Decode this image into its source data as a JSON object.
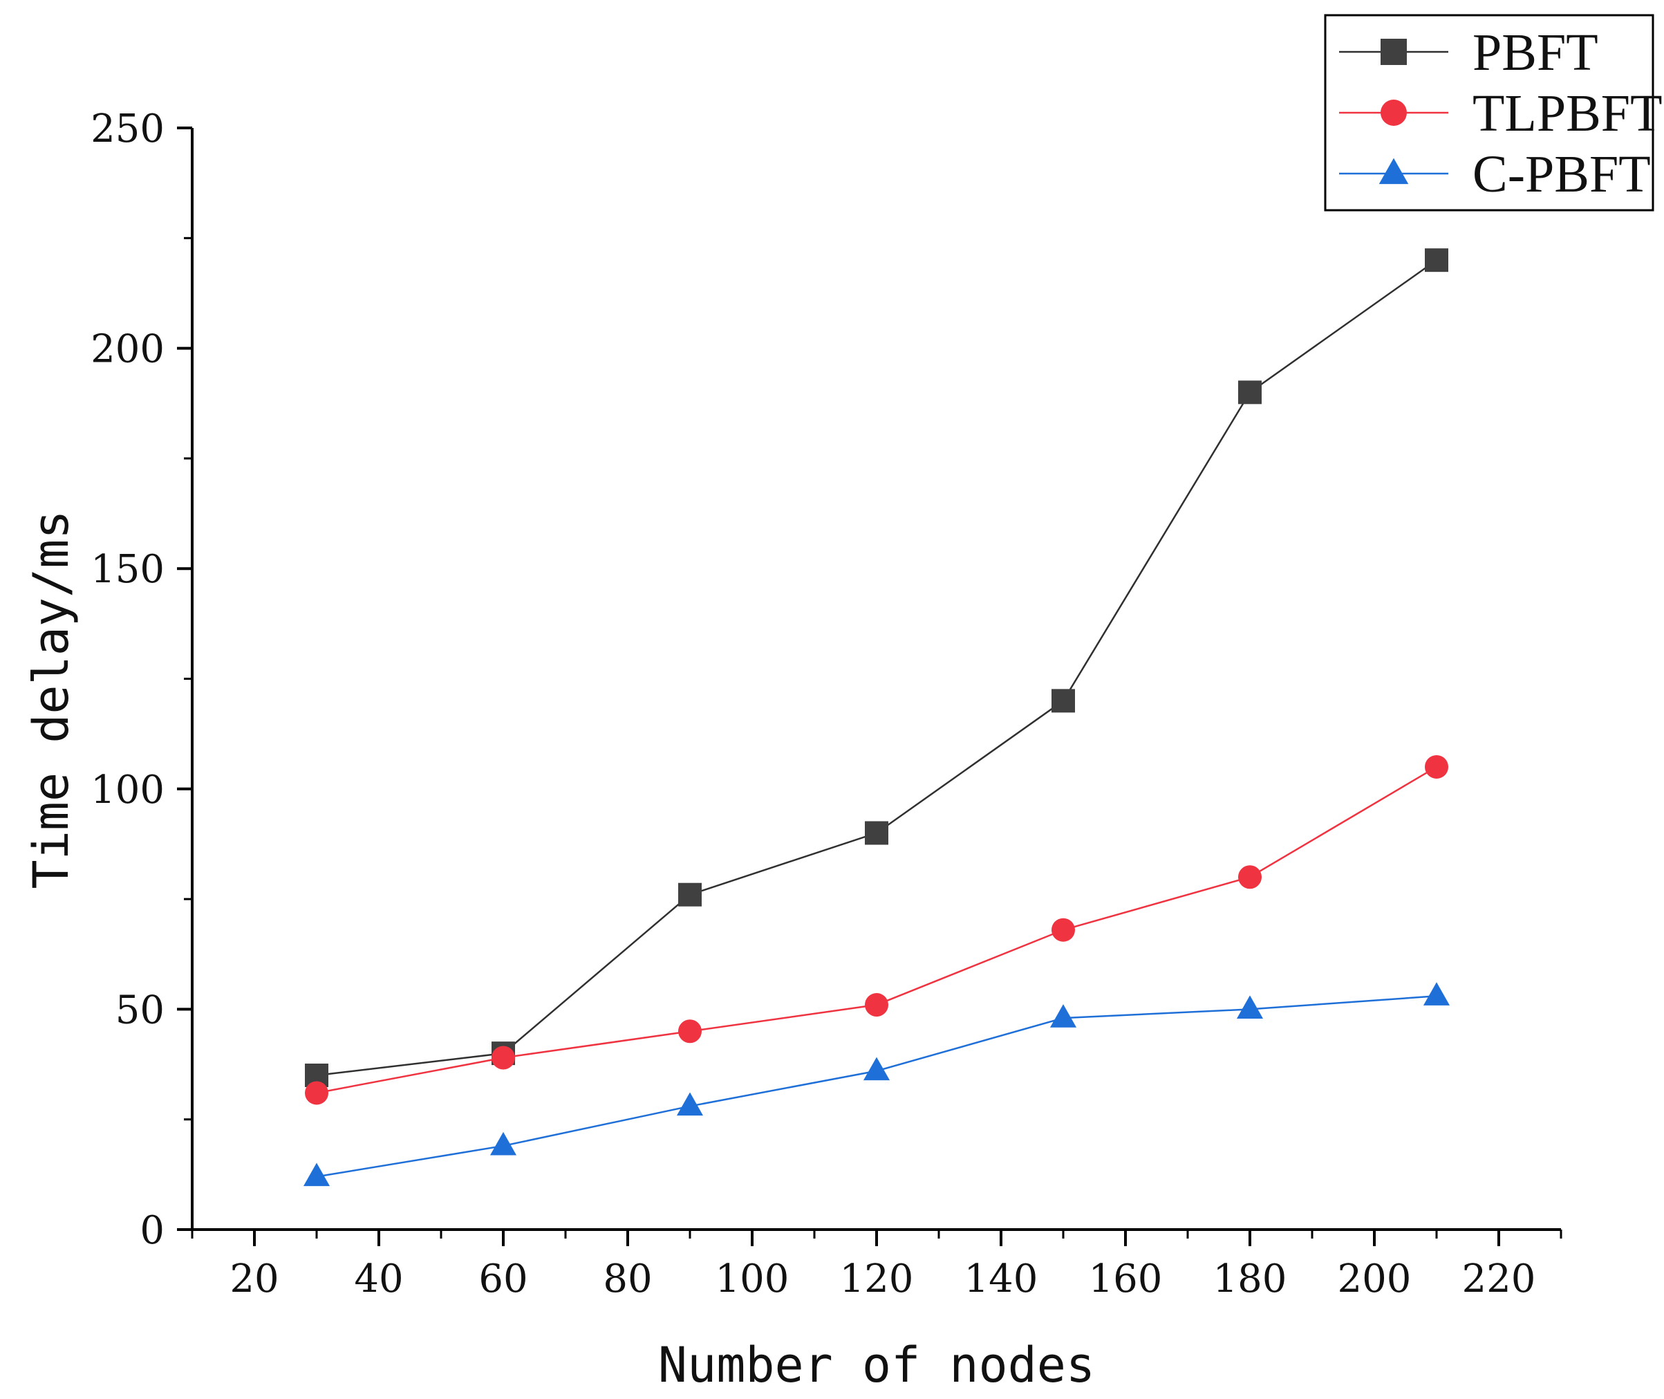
{
  "chart_data": {
    "type": "line",
    "title": "",
    "xlabel": "Number of nodes",
    "ylabel": "Time delay/ms",
    "xlim": [
      10,
      230
    ],
    "ylim": [
      0,
      250
    ],
    "x_ticks": [
      20,
      40,
      60,
      80,
      100,
      120,
      140,
      160,
      180,
      200,
      220
    ],
    "y_ticks": [
      0,
      50,
      100,
      150,
      200,
      250
    ],
    "x": [
      30,
      60,
      90,
      120,
      150,
      180,
      210
    ],
    "legend_position": "top-right",
    "grid": false,
    "series": [
      {
        "name": "PBFT",
        "marker": "square",
        "color": "#404040",
        "line_color": "#303030",
        "values": [
          35,
          40,
          76,
          90,
          120,
          190,
          220
        ]
      },
      {
        "name": "TLPBFT",
        "marker": "circle",
        "color": "#ef3340",
        "line_color": "#ef3340",
        "values": [
          31,
          39,
          45,
          51,
          68,
          80,
          105
        ]
      },
      {
        "name": "C-PBFT",
        "marker": "triangle",
        "color": "#1f6fd8",
        "line_color": "#1f6fd8",
        "values": [
          12,
          19,
          28,
          36,
          48,
          50,
          53
        ]
      }
    ]
  }
}
